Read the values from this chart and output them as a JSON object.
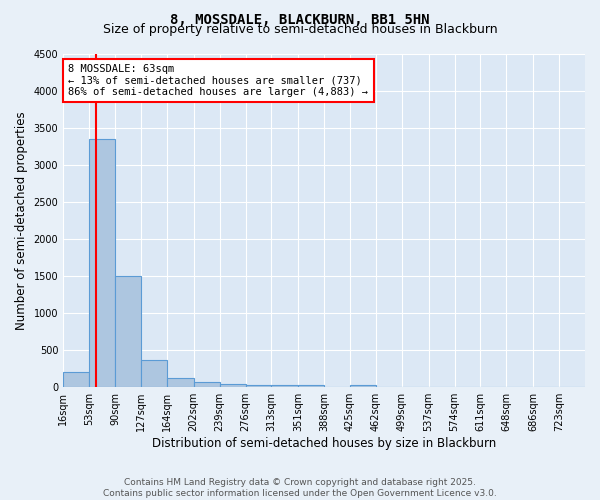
{
  "title": "8, MOSSDALE, BLACKBURN, BB1 5HN",
  "subtitle": "Size of property relative to semi-detached houses in Blackburn",
  "xlabel": "Distribution of semi-detached houses by size in Blackburn",
  "ylabel": "Number of semi-detached properties",
  "footer_line1": "Contains HM Land Registry data © Crown copyright and database right 2025.",
  "footer_line2": "Contains public sector information licensed under the Open Government Licence v3.0.",
  "bin_edges": [
    16,
    53,
    90,
    127,
    164,
    202,
    239,
    276,
    313,
    351,
    388,
    425,
    462,
    499,
    537,
    574,
    611,
    648,
    686,
    723,
    760
  ],
  "bin_heights": [
    200,
    3350,
    1500,
    370,
    130,
    75,
    40,
    35,
    35,
    35,
    0,
    35,
    0,
    0,
    0,
    0,
    0,
    0,
    0,
    0
  ],
  "bar_color": "#adc6e0",
  "bar_edgecolor": "#5b9bd5",
  "property_size": 63,
  "property_label": "8 MOSSDALE: 63sqm",
  "annotation_line1": "← 13% of semi-detached houses are smaller (737)",
  "annotation_line2": "86% of semi-detached houses are larger (4,883) →",
  "vline_color": "red",
  "annotation_box_edgecolor": "red",
  "annotation_box_facecolor": "white",
  "ylim": [
    0,
    4500
  ],
  "yticks": [
    0,
    500,
    1000,
    1500,
    2000,
    2500,
    3000,
    3500,
    4000,
    4500
  ],
  "bg_color": "#e8f0f8",
  "plot_bg_color": "#dce8f5",
  "grid_color": "white",
  "title_fontsize": 10,
  "subtitle_fontsize": 9,
  "tick_label_fontsize": 7,
  "axis_label_fontsize": 8.5,
  "footer_fontsize": 6.5,
  "annotation_fontsize": 7.5
}
